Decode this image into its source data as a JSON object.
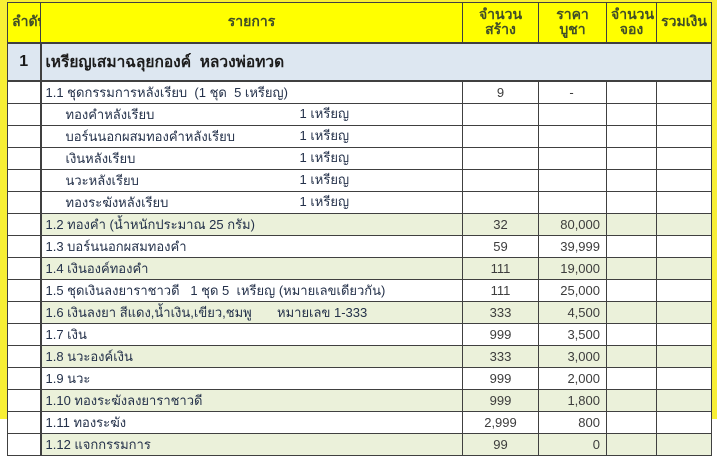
{
  "table": {
    "header": {
      "order": "ลำดับ",
      "item": "รายการ",
      "qty_line1": "จำนวน",
      "qty_line2": "สร้าง",
      "price_line1": "ราคา",
      "price_line2": "บูชา",
      "reserved_line1": "จำนวน",
      "reserved_line2": "จอง",
      "total": "รวมเงิน"
    },
    "section": {
      "no": "1",
      "title": "เหรียญเสมาฉลุยกองค์  หลวงพ่อทวด"
    },
    "rows": [
      {
        "item": "1.1 ชุดกรรมการหลังเรียบ  (1 ชุด  5 เหรียญ)",
        "qty": "9",
        "price": "-",
        "sub": false,
        "shade": false
      },
      {
        "item": "ทองคำหลังเรียบ",
        "unit": "1 เหรียญ",
        "qty": "",
        "price": "",
        "sub": true,
        "shade": false
      },
      {
        "item": "บอร์นนอกผสมทองคำหลังเรียบ",
        "unit": "1 เหรียญ",
        "qty": "",
        "price": "",
        "sub": true,
        "shade": false
      },
      {
        "item": "เงินหลังเรียบ",
        "unit": "1 เหรียญ",
        "qty": "",
        "price": "",
        "sub": true,
        "shade": false
      },
      {
        "item": "นวะหลังเรียบ",
        "unit": "1 เหรียญ",
        "qty": "",
        "price": "",
        "sub": true,
        "shade": false
      },
      {
        "item": "ทองระฆังหลังเรียบ",
        "unit": "1 เหรียญ",
        "qty": "",
        "price": "",
        "sub": true,
        "shade": false
      },
      {
        "item": "1.2 ทองคำ (น้ำหนักประมาณ 25 กรัม)",
        "qty": "32",
        "price": "80,000",
        "sub": false,
        "shade": true
      },
      {
        "item": "1.3 บอร์นนอกผสมทองคำ",
        "qty": "59",
        "price": "39,999",
        "sub": false,
        "shade": false
      },
      {
        "item": "1.4 เงินองค์ทองคำ",
        "qty": "111",
        "price": "19,000",
        "sub": false,
        "shade": true
      },
      {
        "item": "1.5 ชุดเงินลงยาราชาวดี   1 ชุด 5  เหรียญ (หมายเลขเดียวกัน)",
        "qty": "111",
        "price": "25,000",
        "sub": false,
        "shade": false
      },
      {
        "item": "1.6 เงินลงยา สีแดง,น้ำเงิน,เขียว,ชมพู       หมายเลข 1-333",
        "qty": "333",
        "price": "4,500",
        "sub": false,
        "shade": true
      },
      {
        "item": "1.7 เงิน",
        "qty": "999",
        "price": "3,500",
        "sub": false,
        "shade": false
      },
      {
        "item": "1.8 นวะองค์เงิน",
        "qty": "333",
        "price": "3,000",
        "sub": false,
        "shade": true
      },
      {
        "item": "1.9 นวะ",
        "qty": "999",
        "price": "2,000",
        "sub": false,
        "shade": false
      },
      {
        "item": "1.10 ทองระฆังลงยาราชาวดี",
        "qty": "999",
        "price": "1,800",
        "sub": false,
        "shade": true
      },
      {
        "item": "1.11 ทองระฆัง",
        "qty": "2,999",
        "price": "800",
        "sub": false,
        "shade": false
      },
      {
        "item": "1.12 แจกกรรมการ",
        "qty": "99",
        "price": "0",
        "sub": false,
        "shade": true
      }
    ]
  },
  "colors": {
    "frame_yellow": "#f8ef35",
    "header_bg": "#ffff00",
    "header_text": "#414e28",
    "section_bg": "#dde7f1",
    "shade_row_bg": "#ebf1da",
    "grid_line": "#404040"
  }
}
